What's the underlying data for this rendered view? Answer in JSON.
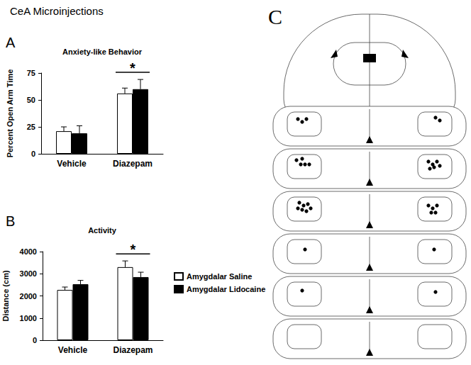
{
  "title": "CeA Microinjections",
  "chart_data": [
    {
      "panel_label": "A",
      "type": "bar",
      "title": "Anxiety-like Behavior",
      "y_label": "Percent Open Arm Time",
      "categories": [
        "Vehicle",
        "Diazepam"
      ],
      "series": [
        {
          "name": "Amygdalar Saline",
          "color": "#ffffff",
          "values": [
            21,
            56
          ],
          "errors": [
            4,
            5
          ]
        },
        {
          "name": "Amygdalar Lidocaine",
          "color": "#000000",
          "values": [
            19,
            60
          ],
          "errors": [
            7,
            9
          ]
        }
      ],
      "ylim": [
        0,
        75
      ],
      "yticks": [
        0,
        25,
        50,
        75
      ],
      "grid": false,
      "annotations": [
        {
          "text": "*",
          "category": "Diazepam"
        }
      ]
    },
    {
      "panel_label": "B",
      "type": "bar",
      "title": "Activity",
      "y_label": "Distance (cm)",
      "categories": [
        "Vehicle",
        "Diazepam"
      ],
      "series": [
        {
          "name": "Amygdalar Saline",
          "color": "#ffffff",
          "values": [
            2270,
            3300
          ],
          "errors": [
            130,
            280
          ]
        },
        {
          "name": "Amygdalar Lidocaine",
          "color": "#000000",
          "values": [
            2530,
            2850
          ],
          "errors": [
            170,
            220
          ]
        }
      ],
      "ylim": [
        0,
        4000
      ],
      "yticks": [
        0,
        1000,
        2000,
        3000,
        4000
      ],
      "grid": false,
      "legend": "right",
      "annotations": [
        {
          "text": "*",
          "category": "Diazepam"
        }
      ]
    }
  ],
  "panel_c": {
    "label": "C"
  }
}
